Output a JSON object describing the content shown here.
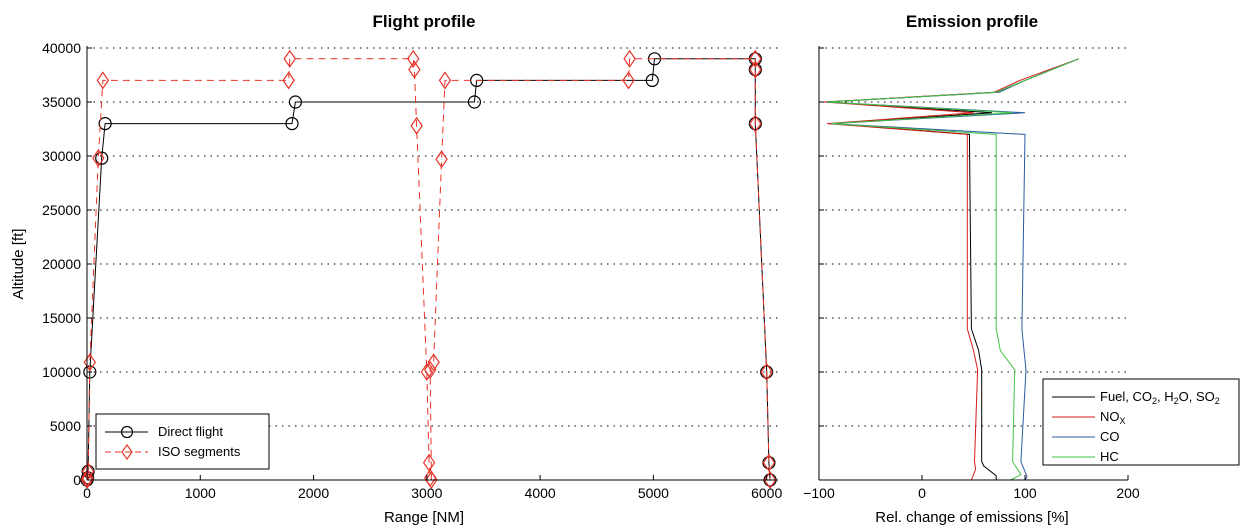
{
  "chart_data": [
    {
      "type": "line",
      "title": "Flight profile",
      "xlabel": "Range [NM]",
      "ylabel": "Altitude [ft]",
      "xlim": [
        0,
        6100
      ],
      "ylim": [
        0,
        40000
      ],
      "xticks": [
        "0",
        "1000",
        "2000",
        "3000",
        "4000",
        "5000",
        "6000"
      ],
      "yticks": [
        "0",
        "5000",
        "10000",
        "15000",
        "20000",
        "25000",
        "30000",
        "35000",
        "40000"
      ],
      "grid": "dotted horizontal",
      "legend_position": "bottom-left",
      "series": [
        {
          "name": "Direct flight",
          "color": "#000000",
          "marker": "circle",
          "dash": "solid",
          "points": [
            [
              0,
              0
            ],
            [
              5,
              200
            ],
            [
              10,
              800
            ],
            [
              25,
              10000
            ],
            [
              130,
              29800
            ],
            [
              160,
              33000
            ],
            [
              1810,
              33000
            ],
            [
              1840,
              35000
            ],
            [
              3420,
              35000
            ],
            [
              3440,
              37000
            ],
            [
              4990,
              37000
            ],
            [
              5010,
              39000
            ],
            [
              5900,
              39000
            ],
            [
              5900,
              38000
            ],
            [
              5900,
              33000
            ],
            [
              6000,
              10000
            ],
            [
              6020,
              1600
            ],
            [
              6030,
              0
            ]
          ]
        },
        {
          "name": "ISO segments",
          "color": "#e8342a",
          "marker": "diamond",
          "dash": "dashed",
          "points": [
            [
              0,
              0
            ],
            [
              5,
              200
            ],
            [
              10,
              800
            ],
            [
              25,
              10900
            ],
            [
              100,
              29800
            ],
            [
              140,
              37000
            ],
            [
              1780,
              37000
            ],
            [
              1790,
              39000
            ],
            [
              2880,
              39000
            ],
            [
              2890,
              38000
            ],
            [
              2910,
              32800
            ],
            [
              3000,
              10000
            ],
            [
              3020,
              1600
            ],
            [
              3030,
              200
            ],
            [
              3040,
              0
            ],
            [
              3030,
              10200
            ],
            [
              3060,
              10900
            ],
            [
              3130,
              29700
            ],
            [
              3160,
              37000
            ],
            [
              4780,
              37000
            ],
            [
              4790,
              39000
            ],
            [
              5900,
              39000
            ],
            [
              5900,
              38000
            ],
            [
              5900,
              33000
            ],
            [
              6000,
              10000
            ],
            [
              6020,
              1600
            ],
            [
              6030,
              0
            ]
          ]
        }
      ]
    },
    {
      "type": "line",
      "title": "Emission profile",
      "xlabel": "Rel. change of emissions [%]",
      "ylabel": "",
      "xlim": [
        -100,
        200
      ],
      "ylim": [
        0,
        40000
      ],
      "xticks": [
        "−100",
        "0",
        "100",
        "200"
      ],
      "grid": "dotted horizontal",
      "legend_position": "bottom-right",
      "series": [
        {
          "name": "Fuel, CO₂, H₂O, SO₂",
          "color": "#000000",
          "points": [
            [
              72,
              0
            ],
            [
              72,
              400
            ],
            [
              60,
              1300
            ],
            [
              58,
              1700
            ],
            [
              58,
              10200
            ],
            [
              55,
              12000
            ],
            [
              48,
              14000
            ],
            [
              46,
              32000
            ],
            [
              -88,
              33000
            ],
            [
              68,
              34000
            ],
            [
              -93,
              35000
            ],
            [
              72,
              35900
            ],
            [
              100,
              37000
            ],
            [
              152,
              39000
            ]
          ]
        },
        {
          "name": "NOₓ",
          "color": "#d7191c",
          "points": [
            [
              48,
              0
            ],
            [
              52,
              1000
            ],
            [
              51,
              1700
            ],
            [
              54,
              10200
            ],
            [
              50,
              12000
            ],
            [
              44,
              14000
            ],
            [
              44,
              32000
            ],
            [
              -92,
              33000
            ],
            [
              50,
              34000
            ],
            [
              -95,
              35000
            ],
            [
              70,
              35900
            ],
            [
              95,
              37000
            ],
            [
              152,
              39000
            ]
          ]
        },
        {
          "name": "CO",
          "color": "#2c5aa0",
          "points": [
            [
              100,
              0
            ],
            [
              102,
              300
            ],
            [
              96,
              1700
            ],
            [
              101,
              10200
            ],
            [
              99,
              12000
            ],
            [
              97,
              14000
            ],
            [
              100,
              32000
            ],
            [
              -88,
              33000
            ],
            [
              100,
              34000
            ],
            [
              -93,
              35000
            ],
            [
              75,
              35900
            ],
            [
              100,
              37000
            ],
            [
              152,
              39000
            ]
          ]
        },
        {
          "name": "HC",
          "color": "#41c442",
          "points": [
            [
              86,
              0
            ],
            [
              96,
              500
            ],
            [
              88,
              1700
            ],
            [
              90,
              10200
            ],
            [
              76,
              12000
            ],
            [
              72,
              14000
            ],
            [
              72,
              32000
            ],
            [
              -88,
              33000
            ],
            [
              88,
              34000
            ],
            [
              -92,
              35000
            ],
            [
              72,
              35900
            ],
            [
              100,
              37000
            ],
            [
              152,
              39000
            ]
          ]
        }
      ]
    }
  ],
  "legend1": {
    "items": [
      "Direct flight",
      "ISO segments"
    ]
  },
  "legend2": {
    "items": [
      {
        "text": "Fuel, CO",
        "sub": "2",
        "rest": [
          [
            ", H",
            "2"
          ],
          [
            "O, SO",
            "2"
          ]
        ]
      },
      {
        "text": "NO",
        "sub": "X"
      },
      {
        "text": "CO"
      },
      {
        "text": "HC"
      }
    ]
  }
}
